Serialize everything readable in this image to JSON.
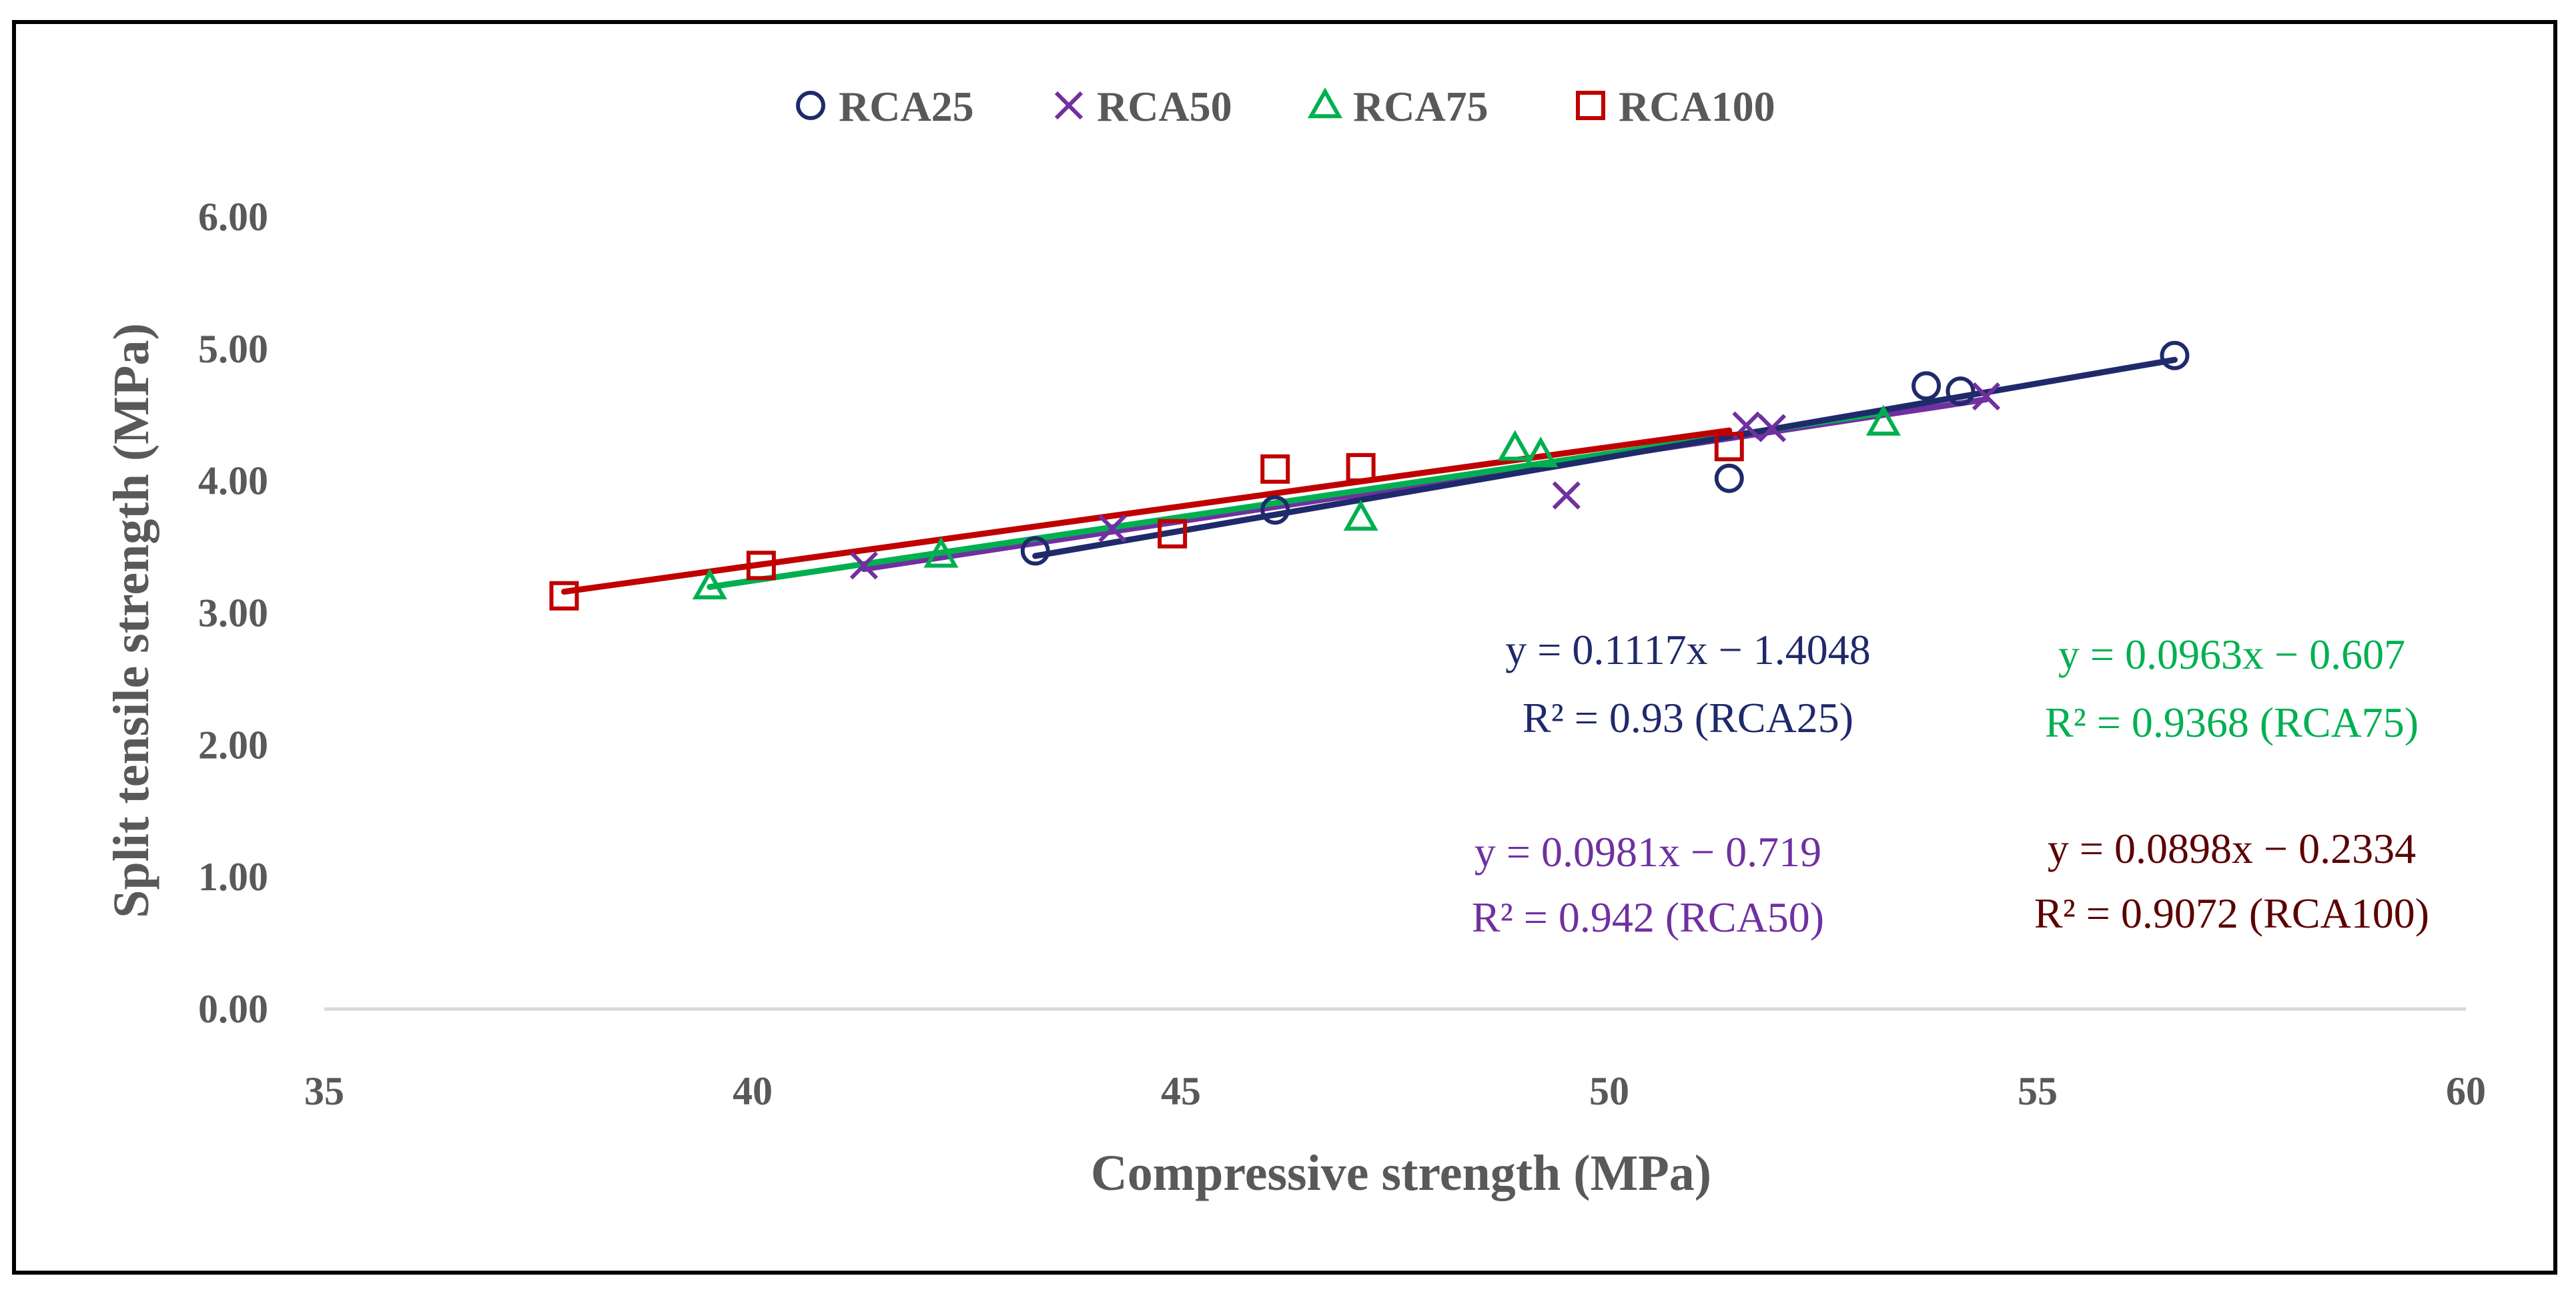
{
  "chart_data": {
    "type": "scatter",
    "title": "",
    "xlabel": "Compressive strength (MPa)",
    "ylabel": "Split tensile strength (MPa)",
    "xlim": [
      35,
      60
    ],
    "ylim": [
      0,
      6
    ],
    "x_ticks": [
      35,
      40,
      45,
      50,
      55,
      60
    ],
    "y_ticks": [
      0,
      1,
      2,
      3,
      4,
      5,
      6
    ],
    "y_tick_labels": [
      "0.00",
      "1.00",
      "2.00",
      "3.00",
      "4.00",
      "5.00",
      "6.00"
    ],
    "grid": false,
    "legend_position": "top-center",
    "series": [
      {
        "name": "RCA25",
        "marker": "circle",
        "color": "#1f2a6b",
        "points": [
          [
            43.3,
            3.47
          ],
          [
            46.1,
            3.78
          ],
          [
            51.4,
            4.02
          ],
          [
            53.7,
            4.72
          ],
          [
            54.1,
            4.68
          ],
          [
            56.6,
            4.95
          ]
        ],
        "trend": {
          "slope": 0.1117,
          "intercept": -1.4048,
          "x_range": [
            43.3,
            56.6
          ]
        },
        "equation": "y = 0.1117x − 1.4048",
        "r2": "R² = 0.93 (RCA25)",
        "label_color": "#1f2a6b"
      },
      {
        "name": "RCA50",
        "marker": "x",
        "color": "#7030a0",
        "points": [
          [
            41.3,
            3.36
          ],
          [
            44.2,
            3.64
          ],
          [
            49.5,
            3.89
          ],
          [
            51.6,
            4.42
          ],
          [
            51.9,
            4.4
          ],
          [
            54.4,
            4.64
          ]
        ],
        "trend": {
          "slope": 0.0981,
          "intercept": -0.719,
          "x_range": [
            41.3,
            54.4
          ]
        },
        "equation": "y = 0.0981x − 0.719",
        "r2": "R² = 0.942 (RCA50)",
        "label_color": "#7030a0"
      },
      {
        "name": "RCA75",
        "marker": "triangle",
        "color": "#00b050",
        "points": [
          [
            39.5,
            3.2
          ],
          [
            42.2,
            3.44
          ],
          [
            47.1,
            3.72
          ],
          [
            48.9,
            4.25
          ],
          [
            49.2,
            4.2
          ],
          [
            53.2,
            4.44
          ]
        ],
        "trend": {
          "slope": 0.0963,
          "intercept": -0.607,
          "x_range": [
            39.5,
            53.2
          ]
        },
        "equation": "y = 0.0963x − 0.607",
        "r2": "R² = 0.9368 (RCA75)",
        "label_color": "#00b050"
      },
      {
        "name": "RCA100",
        "marker": "square",
        "color": "#c00000",
        "points": [
          [
            37.8,
            3.13
          ],
          [
            40.1,
            3.36
          ],
          [
            44.9,
            3.6
          ],
          [
            46.1,
            4.09
          ],
          [
            47.1,
            4.1
          ],
          [
            51.4,
            4.26
          ]
        ],
        "trend": {
          "slope": 0.0898,
          "intercept": -0.2334,
          "x_range": [
            37.8,
            51.4
          ]
        },
        "equation": "y = 0.0898x − 0.2334",
        "r2": "R² = 0.9072 (RCA100)",
        "label_color": "#5c0000"
      }
    ]
  }
}
